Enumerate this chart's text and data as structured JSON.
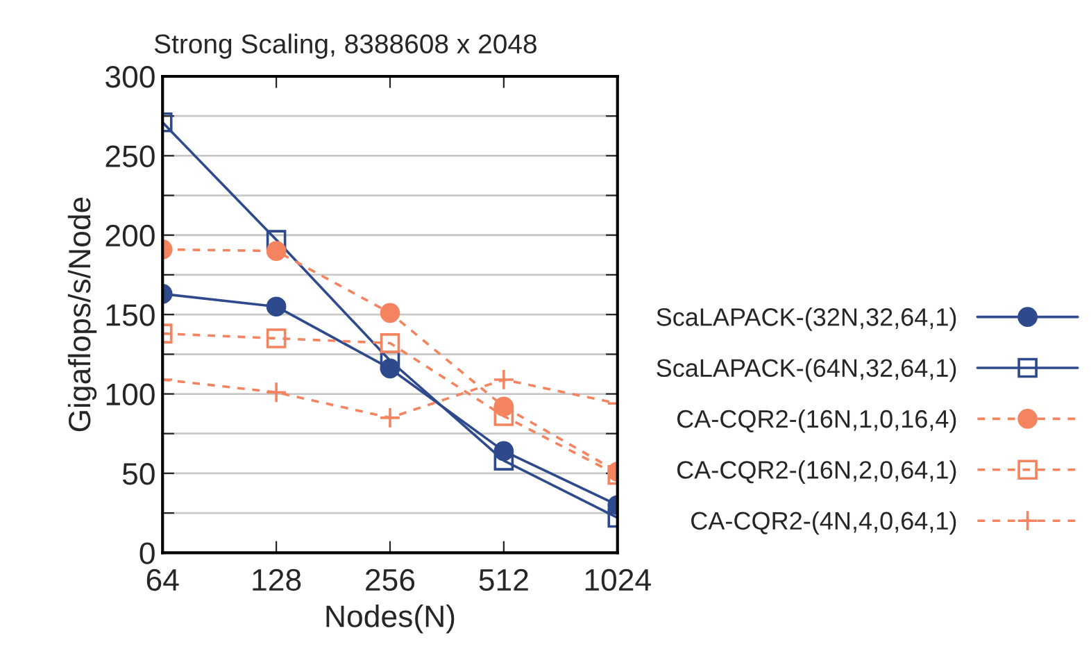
{
  "chart_data": {
    "type": "line",
    "title": "Strong Scaling, 8388608 x 2048",
    "xlabel": "Nodes(N)",
    "ylabel": "Gigaflops/s/Node",
    "categories": [
      "64",
      "128",
      "256",
      "512",
      "1024"
    ],
    "series": [
      {
        "name": "ScaLAPACK-(32N,32,64,1)",
        "color": "#2e4a8c",
        "marker": "circle",
        "line_style": "solid",
        "values": [
          163,
          155,
          116,
          64,
          30
        ]
      },
      {
        "name": "ScaLAPACK-(64N,32,64,1)",
        "color": "#2e4a8c",
        "marker": "square",
        "line_style": "solid",
        "values": [
          271,
          197,
          121,
          58,
          22
        ]
      },
      {
        "name": "CA-CQR2-(16N,1,0,16,4)",
        "color": "#f4845f",
        "marker": "circle",
        "line_style": "dashed",
        "values": [
          191,
          190,
          151,
          92,
          51
        ]
      },
      {
        "name": "CA-CQR2-(16N,2,0,64,1)",
        "color": "#f4845f",
        "marker": "square",
        "line_style": "dashed",
        "values": [
          138,
          135,
          132,
          86,
          49
        ]
      },
      {
        "name": "CA-CQR2-(4N,4,0,64,1)",
        "color": "#f4845f",
        "marker": "cross",
        "line_style": "dashed",
        "values": [
          109,
          101,
          85,
          109,
          94
        ]
      }
    ],
    "ylim": [
      0,
      300
    ],
    "yticks": [
      0,
      {
        "value": 25,
        "label": null
      },
      50,
      {
        "value": 75,
        "label": null
      },
      100,
      {
        "value": 125,
        "label": null
      },
      150,
      {
        "value": 175,
        "label": null
      },
      200,
      {
        "value": 225,
        "label": null
      },
      250,
      {
        "value": 275,
        "label": null
      },
      300
    ],
    "grid": "y",
    "legend": "right"
  }
}
